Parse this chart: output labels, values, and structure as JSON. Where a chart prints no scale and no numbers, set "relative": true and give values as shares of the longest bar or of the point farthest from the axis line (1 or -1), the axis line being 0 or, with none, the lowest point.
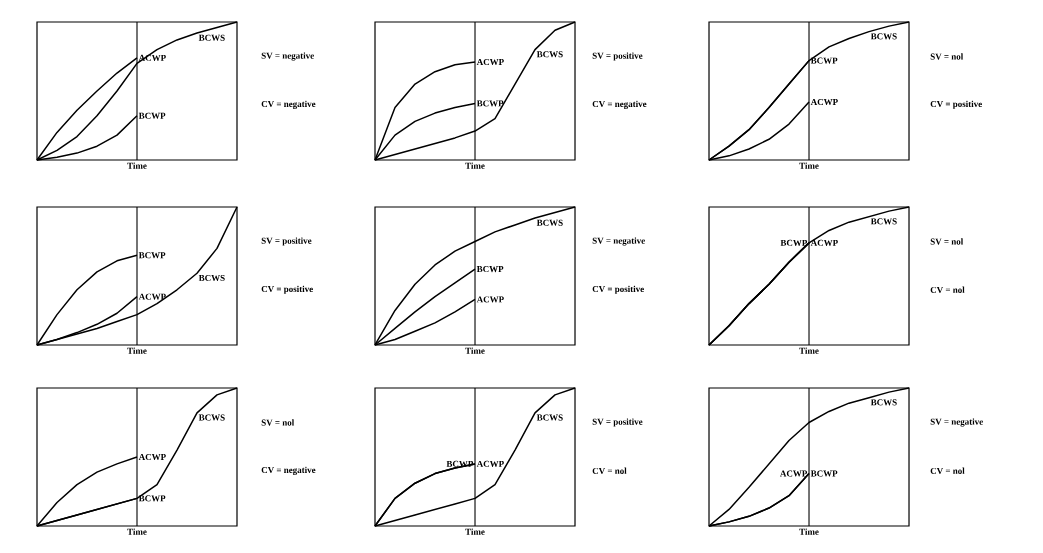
{
  "chart_data": [
    {
      "type": "line",
      "relative": true,
      "xlabel": "Time",
      "categories": [
        null,
        null,
        null,
        null,
        null,
        null,
        null,
        null,
        null,
        null,
        null
      ],
      "annotations": [
        "SV = negative",
        "CV = negative"
      ],
      "series": [
        {
          "name": "ACWP",
          "color": "#000000",
          "values": [
            0,
            0.2,
            0.36,
            0.5,
            0.63,
            0.74,
            null,
            null,
            null,
            null,
            null
          ]
        },
        {
          "name": "BCWS",
          "color": "#000000",
          "values": [
            0,
            0.07,
            0.17,
            0.32,
            0.5,
            0.7,
            0.8,
            0.87,
            0.92,
            0.96,
            1
          ]
        },
        {
          "name": "BCWP",
          "color": "#000000",
          "values": [
            0,
            0.02,
            0.05,
            0.1,
            0.18,
            0.32,
            null,
            null,
            null,
            null,
            null
          ]
        }
      ]
    },
    {
      "type": "line",
      "relative": true,
      "xlabel": "Time",
      "categories": [
        null,
        null,
        null,
        null,
        null,
        null,
        null,
        null,
        null,
        null,
        null
      ],
      "annotations": [
        "SV = positive",
        "CV = negative"
      ],
      "series": [
        {
          "name": "ACWP",
          "color": "#000000",
          "values": [
            0,
            0.38,
            0.55,
            0.64,
            0.69,
            0.71,
            null,
            null,
            null,
            null,
            null
          ]
        },
        {
          "name": "BCWP",
          "color": "#000000",
          "values": [
            0,
            0.18,
            0.28,
            0.34,
            0.38,
            0.41,
            null,
            null,
            null,
            null,
            null
          ]
        },
        {
          "name": "BCWS",
          "color": "#000000",
          "values": [
            0,
            0.04,
            0.08,
            0.12,
            0.16,
            0.21,
            0.3,
            0.55,
            0.8,
            0.94,
            1
          ]
        }
      ]
    },
    {
      "type": "line",
      "relative": true,
      "xlabel": "Time",
      "categories": [
        null,
        null,
        null,
        null,
        null,
        null,
        null,
        null,
        null,
        null,
        null
      ],
      "annotations": [
        "SV = nol",
        "CV = positive"
      ],
      "series": [
        {
          "name": "BCWS",
          "color": "#000000",
          "values": [
            0,
            0.1,
            0.22,
            0.38,
            0.55,
            0.72,
            0.82,
            0.88,
            0.93,
            0.97,
            1
          ]
        },
        {
          "name": "BCWP",
          "color": "#000000",
          "values": [
            0,
            0.1,
            0.22,
            0.38,
            0.55,
            0.72,
            null,
            null,
            null,
            null,
            null
          ]
        },
        {
          "name": "ACWP",
          "color": "#000000",
          "values": [
            0,
            0.03,
            0.08,
            0.15,
            0.26,
            0.42,
            null,
            null,
            null,
            null,
            null
          ]
        }
      ]
    },
    {
      "type": "line",
      "relative": true,
      "xlabel": "Time",
      "categories": [
        null,
        null,
        null,
        null,
        null,
        null,
        null,
        null,
        null,
        null,
        null
      ],
      "annotations": [
        "SV = positive",
        "CV = positive"
      ],
      "series": [
        {
          "name": "BCWP",
          "color": "#000000",
          "values": [
            0,
            0.22,
            0.4,
            0.53,
            0.61,
            0.65,
            null,
            null,
            null,
            null,
            null
          ]
        },
        {
          "name": "ACWP",
          "color": "#000000",
          "values": [
            0,
            0.04,
            0.09,
            0.15,
            0.23,
            0.35,
            null,
            null,
            null,
            null,
            null
          ]
        },
        {
          "name": "BCWS",
          "color": "#000000",
          "values": [
            0,
            0.04,
            0.08,
            0.12,
            0.17,
            0.22,
            0.3,
            0.4,
            0.52,
            0.7,
            1
          ]
        }
      ]
    },
    {
      "type": "line",
      "relative": true,
      "xlabel": "Time",
      "categories": [
        null,
        null,
        null,
        null,
        null,
        null,
        null,
        null,
        null,
        null,
        null
      ],
      "annotations": [
        "SV = negative",
        "CV = positive"
      ],
      "series": [
        {
          "name": "BCWS",
          "color": "#000000",
          "values": [
            0,
            0.25,
            0.44,
            0.58,
            0.68,
            0.75,
            0.82,
            0.87,
            0.92,
            0.96,
            1
          ]
        },
        {
          "name": "BCWP",
          "color": "#000000",
          "values": [
            0,
            0.12,
            0.24,
            0.35,
            0.45,
            0.55,
            null,
            null,
            null,
            null,
            null
          ]
        },
        {
          "name": "ACWP",
          "color": "#000000",
          "values": [
            0,
            0.04,
            0.1,
            0.16,
            0.24,
            0.33,
            null,
            null,
            null,
            null,
            null
          ]
        }
      ]
    },
    {
      "type": "line",
      "relative": true,
      "xlabel": "Time",
      "categories": [
        null,
        null,
        null,
        null,
        null,
        null,
        null,
        null,
        null,
        null,
        null
      ],
      "annotations": [
        "SV = nol",
        "CV = nol"
      ],
      "series": [
        {
          "name": "BCWS",
          "color": "#000000",
          "values": [
            0,
            0.14,
            0.3,
            0.44,
            0.6,
            0.74,
            0.83,
            0.89,
            0.93,
            0.97,
            1
          ]
        },
        {
          "name": "ACWP",
          "color": "#000000",
          "values": [
            0,
            0.14,
            0.3,
            0.44,
            0.6,
            0.74,
            null,
            null,
            null,
            null,
            null
          ]
        },
        {
          "name": "BCWP",
          "color": "#000000",
          "values": [
            0,
            0.14,
            0.3,
            0.44,
            0.6,
            0.74,
            null,
            null,
            null,
            null,
            null
          ]
        }
      ]
    },
    {
      "type": "line",
      "relative": true,
      "xlabel": "Time",
      "categories": [
        null,
        null,
        null,
        null,
        null,
        null,
        null,
        null,
        null,
        null,
        null
      ],
      "annotations": [
        "SV = nol",
        "CV = negative"
      ],
      "series": [
        {
          "name": "ACWP",
          "color": "#000000",
          "values": [
            0,
            0.17,
            0.3,
            0.39,
            0.45,
            0.5,
            null,
            null,
            null,
            null,
            null
          ]
        },
        {
          "name": "BCWS",
          "color": "#000000",
          "values": [
            0,
            0.04,
            0.08,
            0.12,
            0.16,
            0.2,
            0.3,
            0.55,
            0.82,
            0.95,
            1
          ]
        },
        {
          "name": "BCWP",
          "color": "#000000",
          "values": [
            0,
            0.04,
            0.08,
            0.12,
            0.16,
            0.2,
            null,
            null,
            null,
            null,
            null
          ]
        }
      ]
    },
    {
      "type": "line",
      "relative": true,
      "xlabel": "Time",
      "categories": [
        null,
        null,
        null,
        null,
        null,
        null,
        null,
        null,
        null,
        null,
        null
      ],
      "annotations": [
        "SV = positive",
        "CV = nol"
      ],
      "series": [
        {
          "name": "ACWP",
          "color": "#000000",
          "values": [
            0,
            0.2,
            0.31,
            0.38,
            0.42,
            0.45,
            null,
            null,
            null,
            null,
            null
          ]
        },
        {
          "name": "BCWP",
          "color": "#000000",
          "values": [
            0,
            0.2,
            0.31,
            0.38,
            0.42,
            0.45,
            null,
            null,
            null,
            null,
            null
          ]
        },
        {
          "name": "BCWS",
          "color": "#000000",
          "values": [
            0,
            0.04,
            0.08,
            0.12,
            0.16,
            0.2,
            0.3,
            0.55,
            0.82,
            0.95,
            1
          ]
        }
      ]
    },
    {
      "type": "line",
      "relative": true,
      "xlabel": "Time",
      "categories": [
        null,
        null,
        null,
        null,
        null,
        null,
        null,
        null,
        null,
        null,
        null
      ],
      "annotations": [
        "SV = negative",
        "CV = nol"
      ],
      "series": [
        {
          "name": "BCWS",
          "color": "#000000",
          "values": [
            0,
            0.12,
            0.28,
            0.45,
            0.62,
            0.75,
            0.83,
            0.89,
            0.93,
            0.97,
            1
          ]
        },
        {
          "name": "BCWP",
          "color": "#000000",
          "values": [
            0,
            0.03,
            0.07,
            0.13,
            0.22,
            0.38,
            null,
            null,
            null,
            null,
            null
          ]
        },
        {
          "name": "ACWP",
          "color": "#000000",
          "values": [
            0,
            0.03,
            0.07,
            0.13,
            0.22,
            0.38,
            null,
            null,
            null,
            null,
            null
          ]
        }
      ]
    }
  ]
}
